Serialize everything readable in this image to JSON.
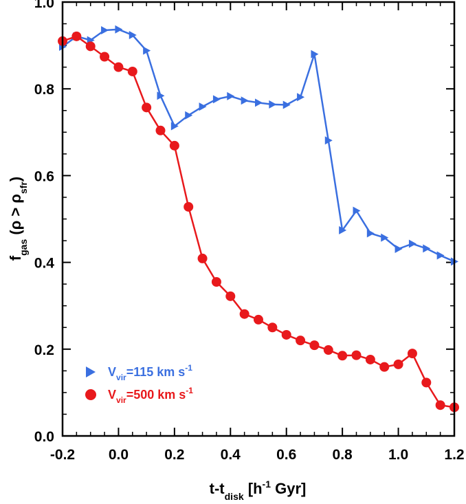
{
  "chart_data": {
    "type": "line",
    "xlabel": "t-t",
    "xlabel_sub": "disk",
    "xlabel_after": " [h",
    "xlabel_sup": "-1",
    "xlabel_end": " Gyr]",
    "ylabel": "f",
    "ylabel_sub": "gas",
    "ylabel_mid": " (ρ > ρ",
    "ylabel_sub2": "sfr",
    "ylabel_end": ")",
    "xlim": [
      -0.2,
      1.2
    ],
    "ylim": [
      0.0,
      1.0
    ],
    "x_ticks": [
      -0.2,
      0.0,
      0.2,
      0.4,
      0.6,
      0.8,
      1.0,
      1.2
    ],
    "x_tick_labels": [
      "-0.2",
      "0.0",
      "0.2",
      "0.4",
      "0.6",
      "0.8",
      "1.0",
      "1.2"
    ],
    "y_ticks": [
      0.0,
      0.2,
      0.4,
      0.6,
      0.8,
      1.0
    ],
    "y_tick_labels": [
      "0.0",
      "0.2",
      "0.4",
      "0.6",
      "0.8",
      "1.0"
    ],
    "legend_placement": "bottom-left",
    "series": [
      {
        "legend_prefix": "V",
        "legend_sub": "vir",
        "legend_mid": "=115 km s",
        "legend_sup": "-1",
        "color": "#3a6fe0",
        "marker": "triangle-right",
        "x": [
          -0.2,
          -0.15,
          -0.1,
          -0.05,
          0.0,
          0.05,
          0.1,
          0.15,
          0.2,
          0.25,
          0.3,
          0.35,
          0.4,
          0.45,
          0.5,
          0.55,
          0.6,
          0.65,
          0.7,
          0.75,
          0.8,
          0.85,
          0.9,
          0.95,
          1.0,
          1.05,
          1.1,
          1.15,
          1.2
        ],
        "y": [
          0.897,
          0.921,
          0.912,
          0.935,
          0.937,
          0.924,
          0.888,
          0.784,
          0.714,
          0.739,
          0.759,
          0.776,
          0.783,
          0.773,
          0.768,
          0.764,
          0.763,
          0.781,
          0.88,
          0.681,
          0.474,
          0.519,
          0.467,
          0.457,
          0.431,
          0.443,
          0.432,
          0.416,
          0.402
        ]
      },
      {
        "legend_prefix": "V",
        "legend_sub": "vir",
        "legend_mid": "=500 km s",
        "legend_sup": "-1",
        "color": "#e8191c",
        "marker": "circle",
        "x": [
          -0.2,
          -0.15,
          -0.1,
          -0.05,
          0.0,
          0.05,
          0.1,
          0.15,
          0.2,
          0.25,
          0.3,
          0.35,
          0.4,
          0.45,
          0.5,
          0.55,
          0.6,
          0.65,
          0.7,
          0.75,
          0.8,
          0.85,
          0.9,
          0.95,
          1.0,
          1.05,
          1.1,
          1.15,
          1.2
        ],
        "y": [
          0.91,
          0.921,
          0.898,
          0.874,
          0.85,
          0.84,
          0.757,
          0.704,
          0.669,
          0.528,
          0.409,
          0.355,
          0.322,
          0.281,
          0.268,
          0.25,
          0.233,
          0.22,
          0.209,
          0.198,
          0.185,
          0.186,
          0.176,
          0.159,
          0.165,
          0.19,
          0.123,
          0.071,
          0.066
        ]
      }
    ]
  }
}
